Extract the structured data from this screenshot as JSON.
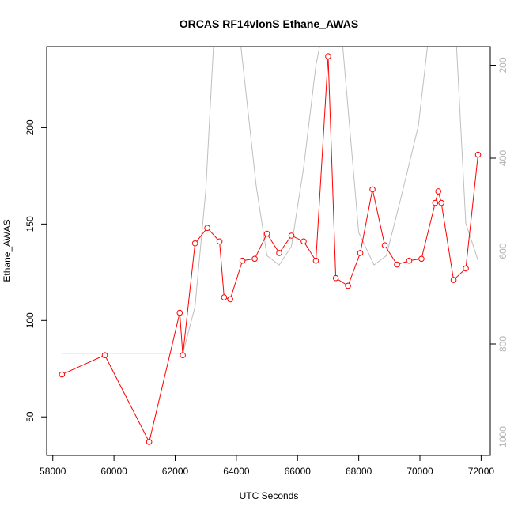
{
  "chart_data": {
    "type": "line",
    "title": "ORCAS RF14vlonS Ethane_AWAS",
    "xlabel": "UTC Seconds",
    "ylabel": "Ethane_AWAS",
    "xlim": [
      57800,
      72300
    ],
    "ylim": [
      30,
      242
    ],
    "y2lim": [
      1040,
      160
    ],
    "x_ticks": [
      58000,
      60000,
      62000,
      64000,
      66000,
      68000,
      70000,
      72000
    ],
    "y_ticks": [
      50,
      100,
      150,
      200
    ],
    "y2_ticks": [
      200,
      400,
      600,
      800,
      1000
    ],
    "y2_reversed": true,
    "grid": false,
    "legend": "none",
    "colors": {
      "ethane": "#ff0000",
      "pressure": "#bebebe",
      "axis": "#000000",
      "y2_tick_text": "#b3b3b3"
    },
    "series": [
      {
        "key": "ethane",
        "style": "line+circle",
        "x": [
          58300,
          59700,
          61150,
          62150,
          62250,
          62650,
          63050,
          63450,
          63600,
          63800,
          64200,
          64600,
          65000,
          65400,
          65800,
          66200,
          66600,
          67000,
          67250,
          67650,
          68050,
          68450,
          68850,
          69250,
          69650,
          70050,
          70500,
          70600,
          70700,
          71100,
          71500,
          71900
        ],
        "y": [
          72,
          82,
          37,
          104,
          82,
          140,
          148,
          141,
          112,
          111,
          131,
          132,
          145,
          135,
          144,
          141,
          131,
          237,
          122,
          118,
          135,
          168,
          139,
          129,
          131,
          132,
          161,
          167,
          161,
          121,
          127,
          186
        ]
      },
      {
        "key": "pressure",
        "style": "line",
        "axis": "right",
        "x": [
          58300,
          59700,
          61150,
          62150,
          62250,
          62650,
          63000,
          63300,
          64050,
          64650,
          65000,
          65400,
          65800,
          66200,
          66600,
          66900,
          67400,
          68000,
          68500,
          68900,
          69400,
          69950,
          70350,
          71150,
          71500,
          71900
        ],
        "y": [
          820,
          820,
          820,
          820,
          820,
          720,
          470,
          100,
          100,
          460,
          610,
          630,
          590,
          420,
          200,
          100,
          100,
          560,
          630,
          610,
          480,
          330,
          100,
          100,
          540,
          620
        ]
      }
    ]
  }
}
